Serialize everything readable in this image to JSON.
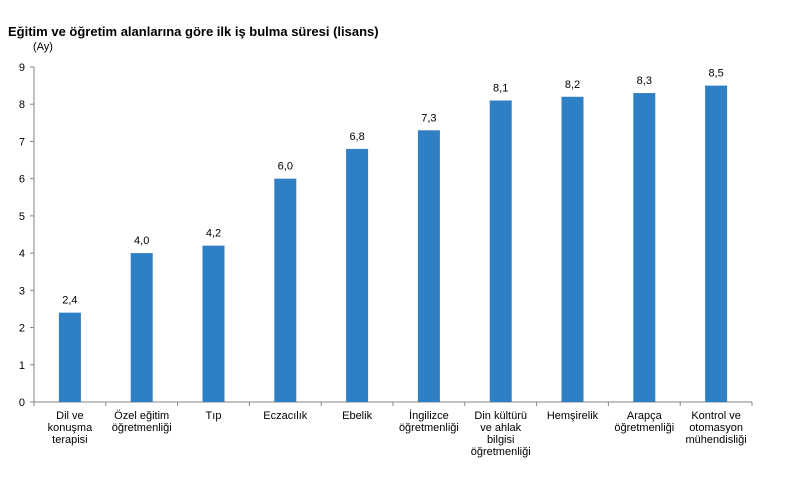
{
  "chart_data": {
    "type": "bar",
    "title": "Eğitim ve öğretim alanlarına göre ilk iş bulma süresi (lisans)",
    "ylabel": "(Ay)",
    "xlabel": "",
    "ylim": [
      0,
      9
    ],
    "yticks": [
      "0",
      "1",
      "2",
      "3",
      "4",
      "5",
      "6",
      "7",
      "8",
      "9"
    ],
    "grid": false,
    "bar_color": "#2e7fc4",
    "categories": [
      [
        "Dil ve",
        "konuşma",
        "terapisi"
      ],
      [
        "Özel eğitim",
        "öğretmenliği"
      ],
      [
        "Tıp"
      ],
      [
        "Eczacılık"
      ],
      [
        "Ebelik"
      ],
      [
        "İngilizce",
        "öğretmenliği"
      ],
      [
        "Din kültürü",
        "ve ahlak",
        "bilgisi",
        "öğretmenliği"
      ],
      [
        "Hemşirelik"
      ],
      [
        "Arapça",
        "öğretmenliği"
      ],
      [
        "Kontrol ve",
        "otomasyon",
        "mühendisliği"
      ]
    ],
    "values": [
      2.4,
      4.0,
      4.2,
      6.0,
      6.8,
      7.3,
      8.1,
      8.2,
      8.3,
      8.5
    ],
    "value_labels": [
      "2,4",
      "4,0",
      "4,2",
      "6,0",
      "6,8",
      "7,3",
      "8,1",
      "8,2",
      "8,3",
      "8,5"
    ]
  }
}
